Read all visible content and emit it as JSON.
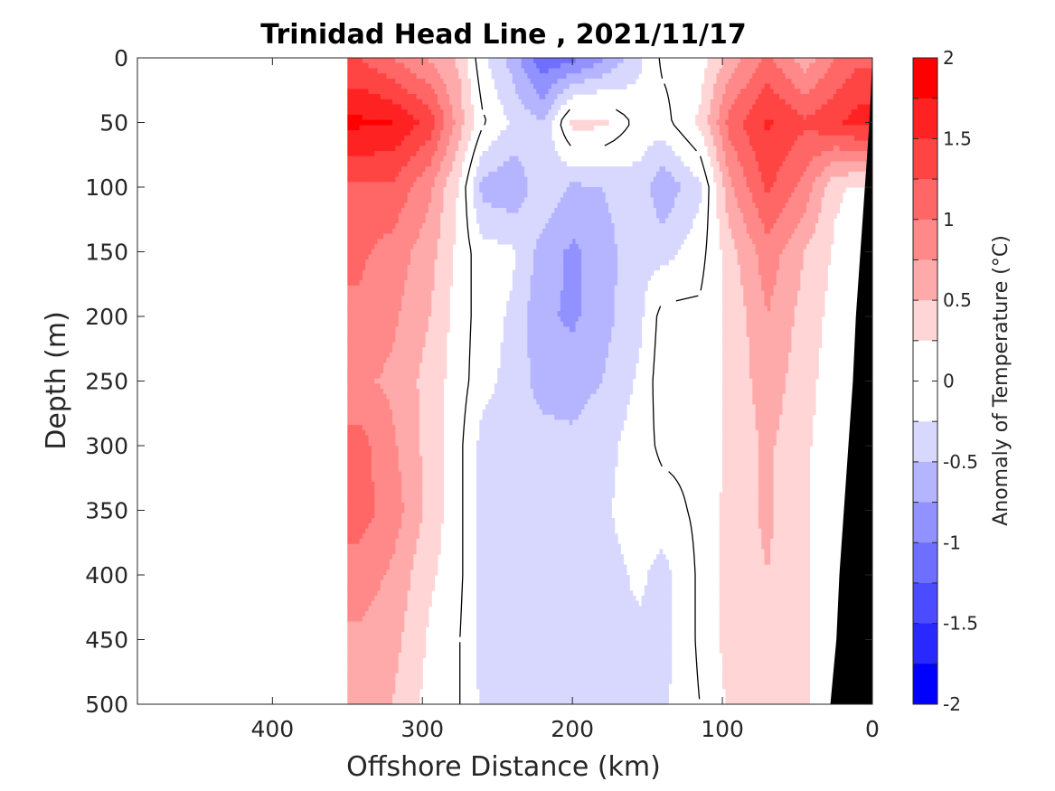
{
  "chart_data": {
    "type": "heatmap",
    "title": "Trinidad Head Line , 2021/11/17",
    "xlabel": "Offshore Distance (km)",
    "ylabel": "Depth (m)",
    "xlim": [
      490,
      0
    ],
    "ylim": [
      0,
      500
    ],
    "x_reversed": true,
    "y_reversed": true,
    "xticks": [
      400,
      300,
      200,
      100,
      0
    ],
    "xtick_labels": [
      "400",
      "300",
      "200",
      "100",
      "0"
    ],
    "yticks": [
      0,
      50,
      100,
      150,
      200,
      250,
      300,
      350,
      400,
      450,
      500
    ],
    "ytick_labels": [
      "0",
      "50",
      "100",
      "150",
      "200",
      "250",
      "300",
      "350",
      "400",
      "450",
      "500"
    ],
    "data_x_range": [
      350,
      0
    ],
    "colorbar": {
      "label": "Anomaly of Temperature (°C)",
      "range": [
        -2,
        2
      ],
      "step": 0.25,
      "tick_values": [
        2,
        1.5,
        1,
        0.5,
        0,
        -0.5,
        -1,
        -1.5,
        -2
      ],
      "tick_labels": [
        "2",
        "1.5",
        "1",
        "0.5",
        "0",
        "-0.5",
        "-1",
        "-1.5",
        "-2"
      ],
      "colors_top_to_bottom": [
        "#ff0000",
        "#ff2222",
        "#ff4444",
        "#ff6666",
        "#ff8888",
        "#ffaaaa",
        "#ffd5d5",
        "#ffffff",
        "#ffffff",
        "#d8d8ff",
        "#b4b4ff",
        "#9191ff",
        "#6e6eff",
        "#4b4bff",
        "#2828ff",
        "#0000ff"
      ]
    },
    "zero_contour_color": "#000000",
    "bathymetry_color": "#000000",
    "columns": [
      {
        "x": 342,
        "depths": [
          0,
          50,
          100,
          150,
          200,
          250,
          300,
          350,
          400,
          450,
          500
        ],
        "values": [
          1.25,
          1.8,
          1.2,
          1.05,
          0.95,
          0.8,
          1.1,
          1.1,
          0.9,
          0.7,
          0.6
        ]
      },
      {
        "x": 320,
        "depths": [
          0,
          50,
          100,
          150,
          200,
          250,
          300,
          350,
          400,
          450,
          500
        ],
        "values": [
          1.0,
          1.75,
          1.2,
          0.9,
          0.8,
          0.7,
          0.8,
          0.9,
          0.7,
          0.6,
          0.5
        ]
      },
      {
        "x": 295,
        "depths": [
          0,
          50,
          100,
          150,
          200,
          250,
          300,
          350,
          400,
          450,
          500
        ],
        "values": [
          0.7,
          1.4,
          0.8,
          0.6,
          0.5,
          0.4,
          0.4,
          0.4,
          0.3,
          0.2,
          0.15
        ]
      },
      {
        "x": 275,
        "depths": [
          0,
          50,
          100,
          150,
          200,
          250,
          300,
          350,
          400,
          450,
          500
        ],
        "values": [
          0.45,
          0.6,
          0.2,
          0.15,
          0.1,
          0.1,
          0.05,
          0.05,
          0.05,
          0.0,
          0.0
        ]
      },
      {
        "x": 260,
        "depths": [
          0,
          50,
          100,
          150,
          200,
          250,
          300,
          350,
          400,
          450,
          500
        ],
        "values": [
          -0.2,
          0.05,
          -0.6,
          -0.15,
          -0.1,
          -0.15,
          -0.35,
          -0.35,
          -0.35,
          -0.35,
          -0.3
        ]
      },
      {
        "x": 240,
        "depths": [
          0,
          50,
          100,
          150,
          200,
          250,
          300,
          350,
          400,
          450,
          500
        ],
        "values": [
          -0.6,
          -0.3,
          -0.7,
          -0.2,
          -0.3,
          -0.35,
          -0.4,
          -0.4,
          -0.4,
          -0.4,
          -0.4
        ]
      },
      {
        "x": 220,
        "depths": [
          0,
          50,
          100,
          150,
          200,
          250,
          300,
          350,
          400,
          450,
          500
        ],
        "values": [
          -1.2,
          -0.5,
          -0.3,
          -0.6,
          -0.7,
          -0.6,
          -0.4,
          -0.35,
          -0.3,
          -0.3,
          -0.3
        ]
      },
      {
        "x": 200,
        "depths": [
          0,
          50,
          100,
          150,
          200,
          250,
          300,
          350,
          400,
          450,
          500
        ],
        "values": [
          -1.1,
          0.35,
          -0.55,
          -0.8,
          -0.8,
          -0.6,
          -0.45,
          -0.4,
          -0.5,
          -0.4,
          -0.35
        ]
      },
      {
        "x": 180,
        "depths": [
          0,
          50,
          100,
          150,
          200,
          250,
          300,
          350,
          400,
          450,
          500
        ],
        "values": [
          -0.8,
          0.3,
          -0.5,
          -0.6,
          -0.6,
          -0.5,
          -0.35,
          -0.3,
          -0.35,
          -0.3,
          -0.3
        ]
      },
      {
        "x": 155,
        "depths": [
          0,
          50,
          100,
          150,
          200,
          250,
          300,
          350,
          400,
          450,
          500
        ],
        "values": [
          -0.3,
          -0.1,
          -0.35,
          -0.35,
          -0.3,
          -0.2,
          -0.1,
          -0.1,
          -0.2,
          -0.3,
          -0.3
        ]
      },
      {
        "x": 140,
        "depths": [
          0,
          50,
          100,
          150,
          200,
          250,
          300,
          350,
          400,
          450,
          500
        ],
        "values": [
          0.05,
          -0.1,
          -0.7,
          -0.35,
          0.1,
          0.15,
          0.05,
          -0.1,
          -0.35,
          -0.35,
          -0.3
        ]
      },
      {
        "x": 115,
        "depths": [
          0,
          50,
          100,
          150,
          200,
          250,
          300,
          350,
          400,
          450,
          500
        ],
        "values": [
          0.1,
          0.3,
          -0.3,
          -0.1,
          0.05,
          0.1,
          0.05,
          0.05,
          0.05,
          0.05,
          0.0
        ]
      },
      {
        "x": 95,
        "depths": [
          0,
          50,
          100,
          150,
          200,
          250,
          300,
          350,
          400,
          450,
          500
        ],
        "values": [
          0.6,
          1.1,
          0.7,
          0.4,
          0.3,
          0.3,
          0.3,
          0.35,
          0.35,
          0.35,
          0.3
        ]
      },
      {
        "x": 70,
        "depths": [
          0,
          50,
          100,
          150,
          200,
          250,
          300,
          350,
          400,
          450,
          500
        ],
        "values": [
          1.05,
          1.55,
          1.3,
          0.9,
          0.75,
          0.65,
          0.55,
          0.55,
          0.5,
          0.5,
          0.4
        ]
      },
      {
        "x": 45,
        "depths": [
          0,
          50,
          100,
          150,
          200,
          250,
          300,
          350,
          400,
          450,
          500
        ],
        "values": [
          0.6,
          1.3,
          0.9,
          0.5,
          0.4,
          0.35,
          0.3,
          0.3,
          0.3,
          0.3,
          0.3
        ]
      },
      {
        "x": 25,
        "depths": [
          0,
          50,
          100,
          150,
          200,
          250,
          300,
          350,
          400,
          450,
          500
        ],
        "values": [
          1.0,
          1.45,
          0.3,
          0.2,
          0.15,
          0.1,
          0.05,
          0.05,
          0.05,
          0.05,
          0.05
        ]
      },
      {
        "x": 10,
        "depths": [
          0,
          50,
          100,
          150,
          200,
          250,
          300,
          350,
          400,
          450,
          500
        ],
        "values": [
          1.2,
          1.6,
          0.2,
          0.1,
          0.05,
          0.05,
          0.05,
          0.05,
          0.05,
          0.0,
          0.0
        ]
      }
    ],
    "bathymetry": [
      [
        0,
        0
      ],
      [
        2,
        50
      ],
      [
        5,
        100
      ],
      [
        8,
        150
      ],
      [
        11,
        200
      ],
      [
        13,
        250
      ],
      [
        16,
        300
      ],
      [
        19,
        350
      ],
      [
        22,
        400
      ],
      [
        24,
        450
      ],
      [
        28,
        500
      ]
    ]
  }
}
